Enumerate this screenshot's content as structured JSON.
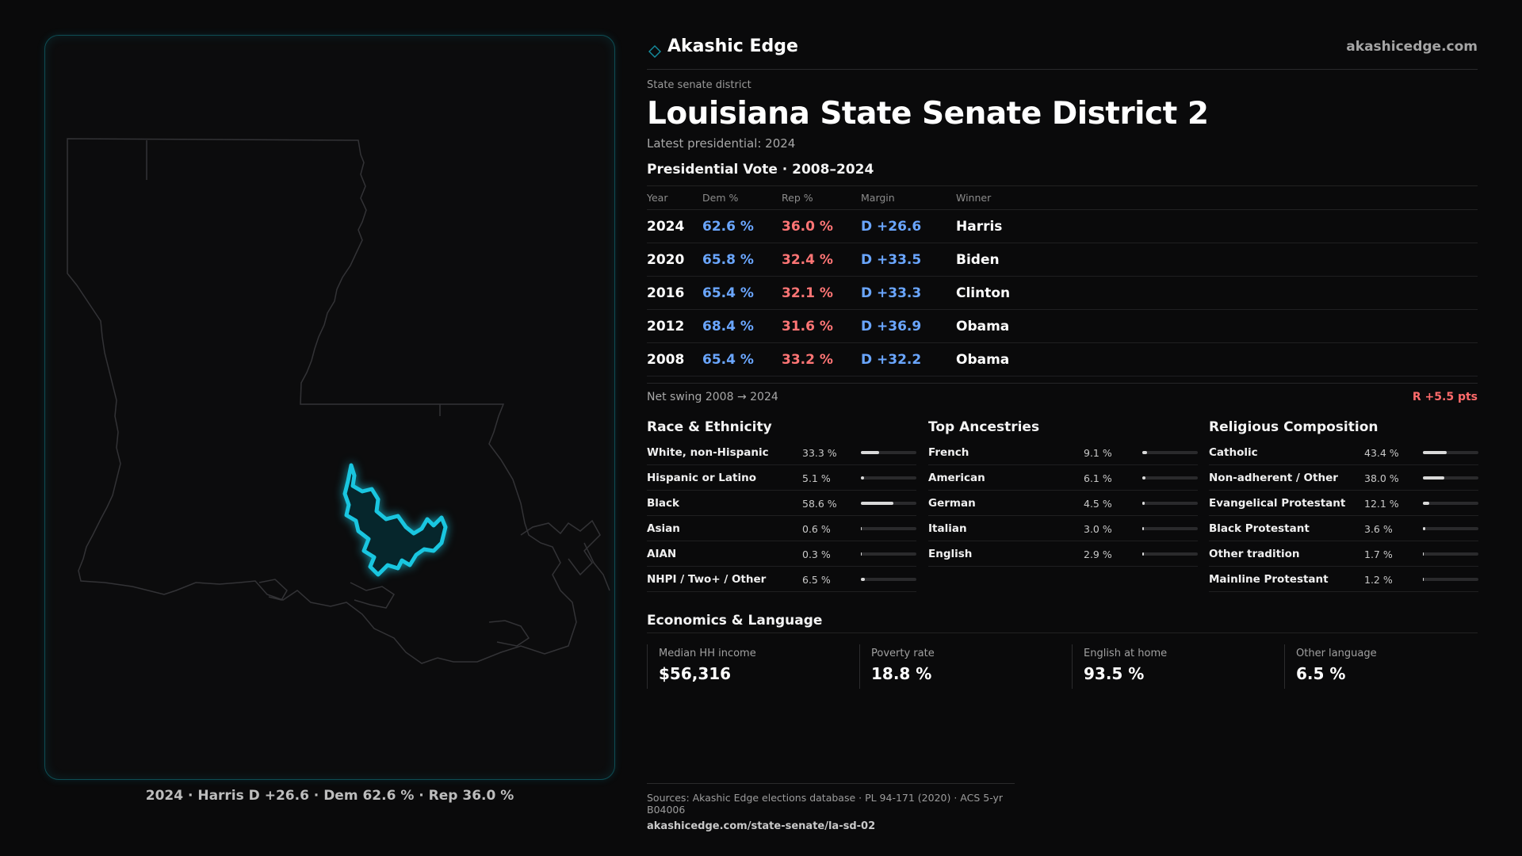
{
  "brand": {
    "name": "Akashic Edge",
    "url": "akashicedge.com",
    "logo_icon": "diamond-icon",
    "accent": "#19c6e0"
  },
  "header": {
    "kicker": "State senate district",
    "title": "Louisiana State Senate District 2",
    "subtitle": "Latest presidential: 2024"
  },
  "presidential": {
    "title": "Presidential Vote · 2008–2024",
    "columns": [
      "Year",
      "Dem %",
      "Rep %",
      "Margin",
      "Winner"
    ],
    "rows": [
      {
        "year": "2024",
        "dem": "62.6 %",
        "rep": "36.0 %",
        "margin": "D +26.6",
        "winner": "Harris"
      },
      {
        "year": "2020",
        "dem": "65.8 %",
        "rep": "32.4 %",
        "margin": "D +33.5",
        "winner": "Biden"
      },
      {
        "year": "2016",
        "dem": "65.4 %",
        "rep": "32.1 %",
        "margin": "D +33.3",
        "winner": "Clinton"
      },
      {
        "year": "2012",
        "dem": "68.4 %",
        "rep": "31.6 %",
        "margin": "D +36.9",
        "winner": "Obama"
      },
      {
        "year": "2008",
        "dem": "65.4 %",
        "rep": "33.2 %",
        "margin": "D +32.2",
        "winner": "Obama"
      }
    ],
    "swing_label": "Net swing 2008 → 2024",
    "swing_value": "R +5.5 pts",
    "colors": {
      "dem": "#6aa6ff",
      "rep": "#ff7575"
    }
  },
  "race": {
    "title": "Race & Ethnicity",
    "rows": [
      {
        "label": "White, non-Hispanic",
        "value": "33.3 %",
        "share": 0.333
      },
      {
        "label": "Hispanic or Latino",
        "value": "5.1 %",
        "share": 0.051
      },
      {
        "label": "Black",
        "value": "58.6 %",
        "share": 0.586
      },
      {
        "label": "Asian",
        "value": "0.6 %",
        "share": 0.006
      },
      {
        "label": "AIAN",
        "value": "0.3 %",
        "share": 0.003
      },
      {
        "label": "NHPI / Two+ / Other",
        "value": "6.5 %",
        "share": 0.065
      }
    ]
  },
  "ancestry": {
    "title": "Top Ancestries",
    "rows": [
      {
        "label": "French",
        "value": "9.1 %",
        "share": 0.091
      },
      {
        "label": "American",
        "value": "6.1 %",
        "share": 0.061
      },
      {
        "label": "German",
        "value": "4.5 %",
        "share": 0.045
      },
      {
        "label": "Italian",
        "value": "3.0 %",
        "share": 0.03
      },
      {
        "label": "English",
        "value": "2.9 %",
        "share": 0.029
      }
    ]
  },
  "religion": {
    "title": "Religious Composition",
    "rows": [
      {
        "label": "Catholic",
        "value": "43.4 %",
        "share": 0.434
      },
      {
        "label": "Non-adherent / Other",
        "value": "38.0 %",
        "share": 0.38
      },
      {
        "label": "Evangelical Protestant",
        "value": "12.1 %",
        "share": 0.121
      },
      {
        "label": "Black Protestant",
        "value": "3.6 %",
        "share": 0.036
      },
      {
        "label": "Other tradition",
        "value": "1.7 %",
        "share": 0.017
      },
      {
        "label": "Mainline Protestant",
        "value": "1.2 %",
        "share": 0.012
      }
    ]
  },
  "economics": {
    "title": "Economics & Language",
    "cards": [
      {
        "label": "Median HH income",
        "value": "$56,316"
      },
      {
        "label": "Poverty rate",
        "value": "18.8 %"
      },
      {
        "label": "English at home",
        "value": "93.5 %"
      },
      {
        "label": "Other language",
        "value": "6.5 %"
      }
    ]
  },
  "map": {
    "caption": "2024 · Harris D +26.6 · Dem 62.6 % · Rep 36.0 %",
    "district_color": "#19c6e0"
  },
  "footer": {
    "sources": "Sources: Akashic Edge elections database · PL 94-171 (2020) · ACS 5-yr B04006",
    "url": "akashicedge.com/state-senate/la-sd-02"
  }
}
